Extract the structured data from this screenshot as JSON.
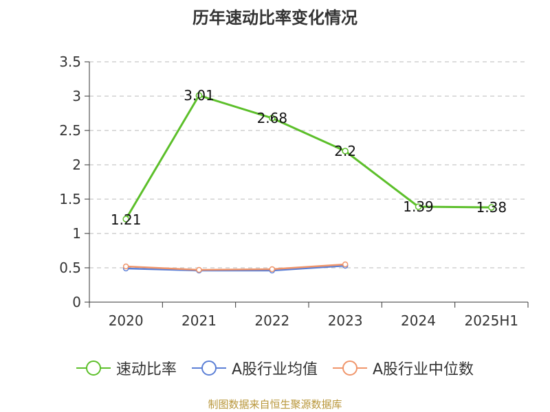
{
  "chart_data": {
    "type": "line",
    "title": "历年速动比率变化情况",
    "categories": [
      "2020",
      "2021",
      "2022",
      "2023",
      "2024",
      "2025H1"
    ],
    "ylim": [
      0,
      3.5
    ],
    "yticks": [
      "0",
      "0.5",
      "1",
      "1.5",
      "2",
      "2.5",
      "3",
      "3.5"
    ],
    "grid": true,
    "legend_position": "bottom",
    "series": [
      {
        "name": "速动比率",
        "color": "#5cbf2a",
        "values": [
          1.21,
          3.01,
          2.68,
          2.2,
          1.39,
          1.38
        ],
        "labels": [
          "1.21",
          "3.01",
          "2.68",
          "2.2",
          "1.39",
          "1.38"
        ]
      },
      {
        "name": "A股行业均值",
        "color": "#5b7fd6",
        "values": [
          0.49,
          0.46,
          0.46,
          0.53,
          null,
          null
        ]
      },
      {
        "name": "A股行业中位数",
        "color": "#f0956a",
        "values": [
          0.52,
          0.47,
          0.48,
          0.55,
          null,
          null
        ]
      }
    ]
  },
  "source_note": "制图数据来自恒生聚源数据库"
}
